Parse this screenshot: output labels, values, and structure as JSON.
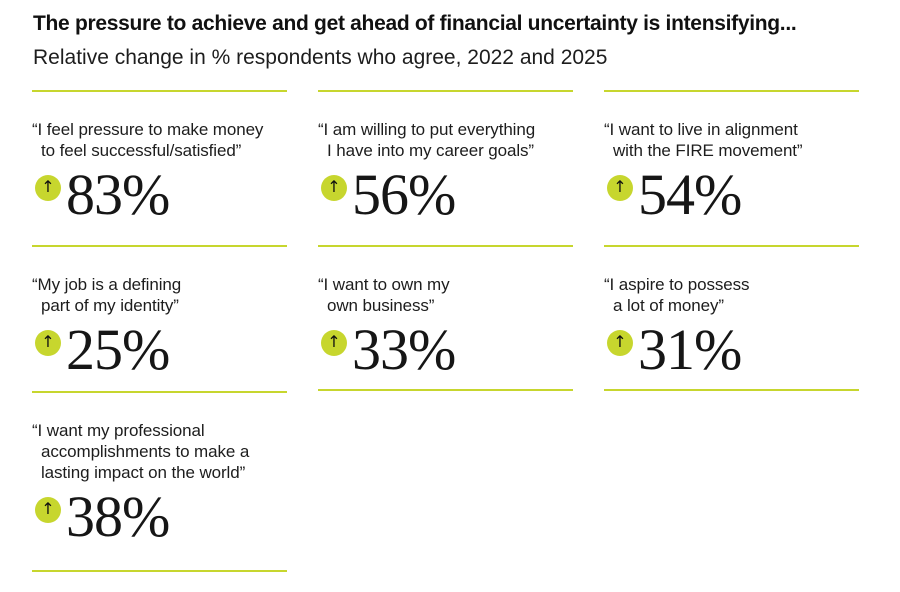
{
  "header": {
    "title": "The pressure to achieve and get ahead of financial uncertainty is intensifying...",
    "subtitle": "Relative change in % respondents who agree, 2022 and 2025"
  },
  "icons": {
    "up_arrow": "↑"
  },
  "colors": {
    "accent_lime": "#c7d62e",
    "text": "#1a1a1a",
    "background": "#ffffff"
  },
  "cards": [
    {
      "quote": "“I feel pressure to make money\nto feel successful/satisfied”",
      "value": "83%"
    },
    {
      "quote": "“I am willing to put everything\nI have into my career goals”",
      "value": "56%"
    },
    {
      "quote": "“I want to live in alignment\nwith the FIRE movement”",
      "value": "54%"
    },
    {
      "quote": "“My job is a defining\npart of my identity”",
      "value": "25%"
    },
    {
      "quote": "“I want to own my\nown business”",
      "value": "33%"
    },
    {
      "quote": "“I aspire to possess\na lot of money”",
      "value": "31%"
    },
    {
      "quote": "“I want my professional\naccomplishments to make a\nlasting impact on the world”",
      "value": "38%"
    }
  ],
  "chart_data": {
    "type": "table",
    "title": "The pressure to achieve and get ahead of financial uncertainty is intensifying...",
    "subtitle": "Relative change in % respondents who agree, 2022 and 2025",
    "categories": [
      "I feel pressure to make money to feel successful/satisfied",
      "I am willing to put everything I have into my career goals",
      "I want to live in alignment with the FIRE movement",
      "My job is a defining part of my identity",
      "I want to own my own business",
      "I aspire to possess a lot of money",
      "I want my professional accomplishments to make a lasting impact on the world"
    ],
    "values": [
      83,
      56,
      54,
      25,
      33,
      31,
      38
    ],
    "value_unit": "% relative change",
    "direction": "increase",
    "layout": "3-column grid of stat cards, 7 cards, lime divider rules"
  }
}
